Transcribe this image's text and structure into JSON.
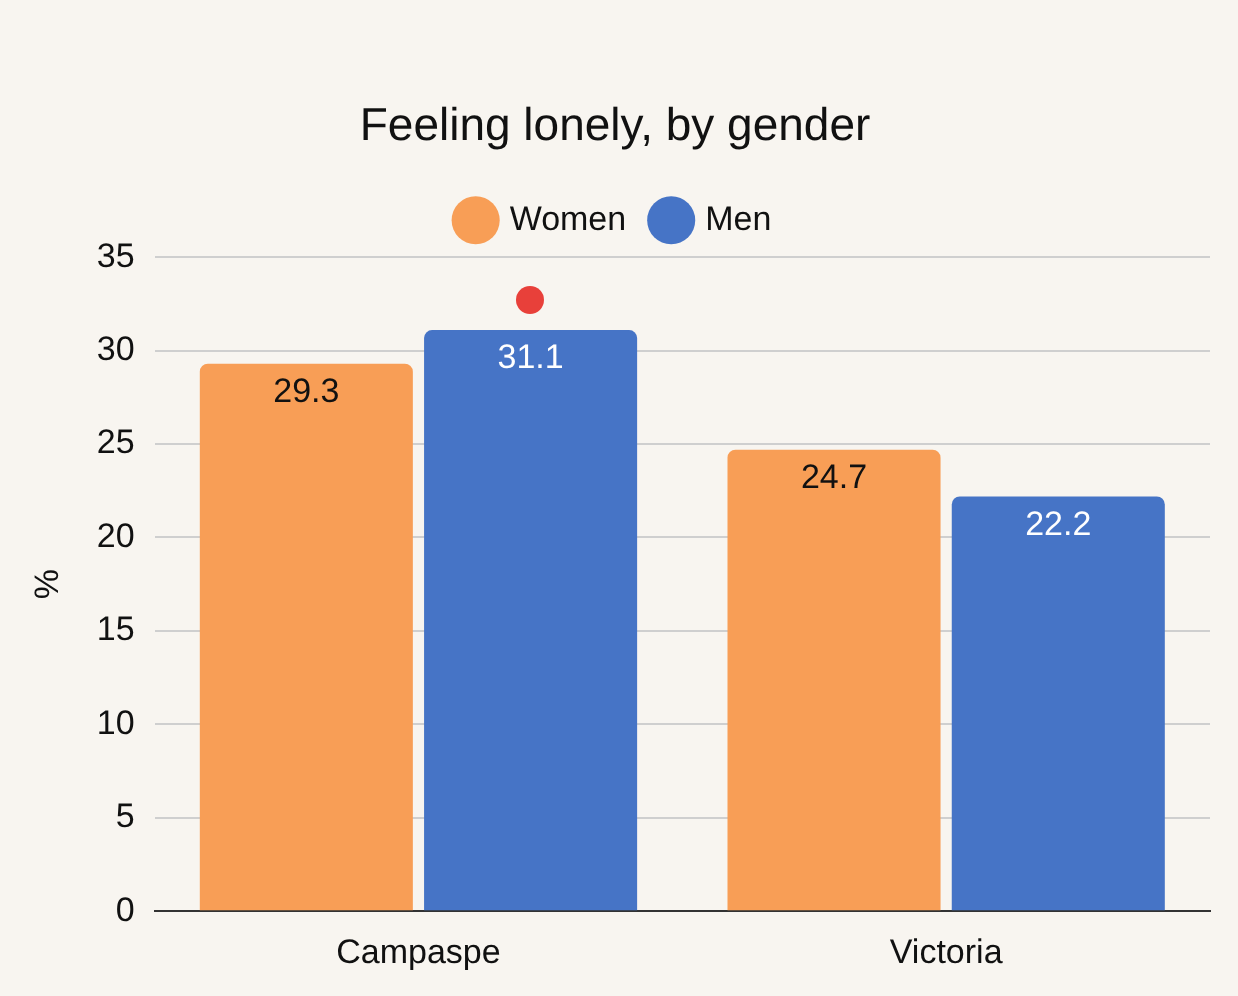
{
  "chart_data": {
    "type": "bar",
    "title": "Feeling lonely, by gender",
    "ylabel": "%",
    "categories": [
      "Campaspe",
      "Victoria"
    ],
    "series": [
      {
        "name": "Women",
        "color": "#f89e56",
        "values": [
          29.3,
          24.7
        ]
      },
      {
        "name": "Men",
        "color": "#4674c6",
        "values": [
          31.1,
          22.2
        ]
      }
    ],
    "ylim": [
      0,
      35
    ],
    "yticks": [
      0,
      5,
      10,
      15,
      20,
      25,
      30,
      35
    ],
    "grid": "y",
    "legend": "top",
    "data_labels": true
  }
}
